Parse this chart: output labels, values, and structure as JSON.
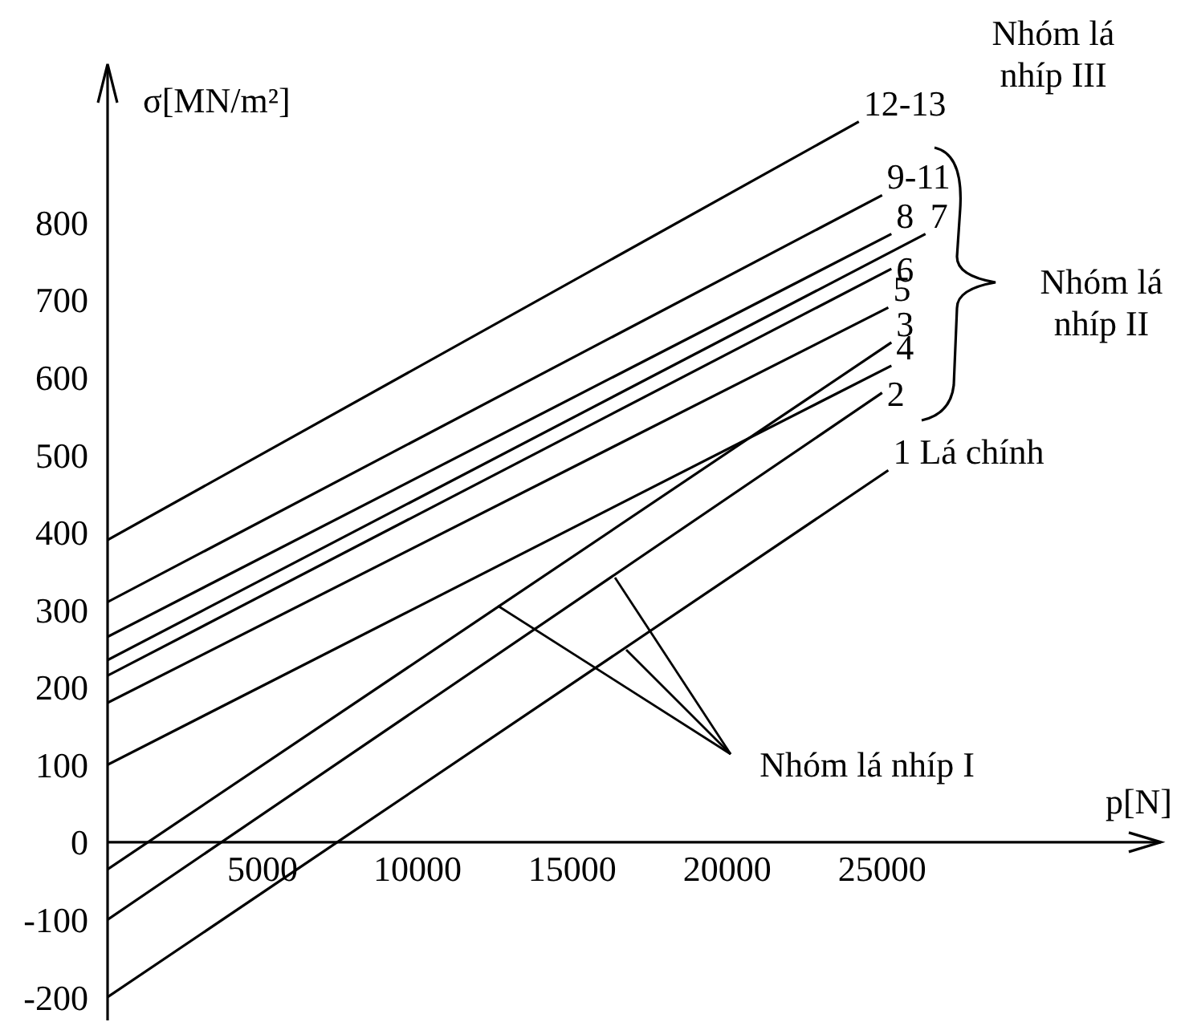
{
  "chart_data": {
    "type": "line",
    "xlabel": "p[N]",
    "ylabel": "σ[MN/m²]",
    "xlim": [
      0,
      34000
    ],
    "ylim": [
      -230,
      1000
    ],
    "xticks": [
      5000,
      10000,
      15000,
      20000,
      25000
    ],
    "yticks": [
      -200,
      -100,
      0,
      100,
      200,
      300,
      400,
      500,
      600,
      700,
      800
    ],
    "grid": false,
    "legend": false,
    "marker": "none",
    "line_style": "solid",
    "annotations": [
      "Nhóm lá nhíp III",
      "Nhóm lá nhíp II",
      {
        "text": "Nhóm lá nhíp I",
        "x": 12600,
        "y": 305
      }
    ],
    "series": [
      {
        "name": "12-13",
        "color": "#000000",
        "x": [
          0,
          24250
        ],
        "values": [
          390,
          930
        ]
      },
      {
        "name": "9-11",
        "color": "#000000",
        "x": [
          0,
          25000
        ],
        "values": [
          310,
          835
        ]
      },
      {
        "name": "8",
        "color": "#000000",
        "x": [
          0,
          25300
        ],
        "values": [
          265,
          785
        ]
      },
      {
        "name": "7",
        "color": "#000000",
        "x": [
          0,
          26400
        ],
        "values": [
          235,
          785
        ]
      },
      {
        "name": "6",
        "color": "#000000",
        "x": [
          0,
          25300
        ],
        "values": [
          215,
          740
        ]
      },
      {
        "name": "5",
        "color": "#000000",
        "x": [
          0,
          25200
        ],
        "values": [
          180,
          690
        ]
      },
      {
        "name": "4",
        "color": "#000000",
        "x": [
          0,
          25300
        ],
        "values": [
          100,
          615
        ]
      },
      {
        "name": "3",
        "color": "#000000",
        "x": [
          0,
          25300
        ],
        "values": [
          -35,
          645
        ]
      },
      {
        "name": "2",
        "color": "#000000",
        "x": [
          0,
          25000
        ],
        "values": [
          -100,
          580
        ]
      },
      {
        "name": "1 Lá chính",
        "color": "#000000",
        "x": [
          0,
          25200
        ],
        "values": [
          -200,
          480
        ]
      }
    ]
  }
}
